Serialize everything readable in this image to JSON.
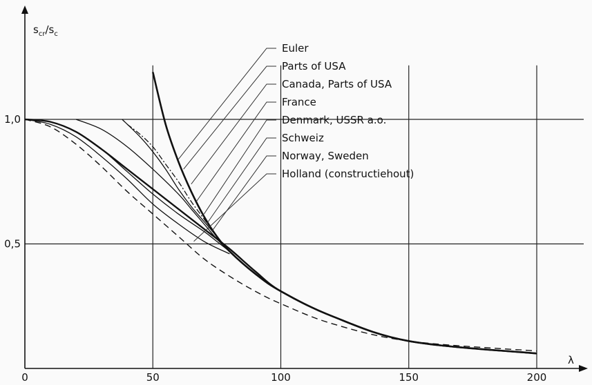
{
  "chart_data": {
    "type": "line",
    "xlabel": "λ",
    "ylabel": "s_cr/s_c",
    "ylabel_main": "s",
    "ylabel_sub1": "cr",
    "ylabel_sep": "/s",
    "ylabel_sub2": "c",
    "xlim": [
      0,
      205
    ],
    "ylim": [
      0,
      1.3
    ],
    "x_ticks": [
      {
        "value": 0,
        "label": "0"
      },
      {
        "value": 50,
        "label": "50"
      },
      {
        "value": 100,
        "label": "100"
      },
      {
        "value": 150,
        "label": "150"
      },
      {
        "value": 200,
        "label": "200"
      }
    ],
    "y_ticks": [
      {
        "value": 0.5,
        "label": "0,5"
      },
      {
        "value": 1.0,
        "label": "1,0"
      }
    ],
    "grid": true,
    "series": [
      {
        "name": "Euler",
        "style": "euler",
        "x": [
          50,
          55,
          60,
          65,
          70,
          75,
          80,
          90,
          100,
          120,
          150,
          200
        ],
        "y": [
          1.19,
          0.98,
          0.83,
          0.71,
          0.61,
          0.53,
          0.47,
          0.38,
          0.31,
          0.21,
          0.11,
          0.06
        ]
      },
      {
        "name": "Parts of USA",
        "style": "thin",
        "x": [
          20,
          30,
          40,
          50,
          60,
          65,
          70,
          75,
          80
        ],
        "y": [
          1.0,
          0.96,
          0.89,
          0.8,
          0.7,
          0.64,
          0.58,
          0.52,
          0.47
        ]
      },
      {
        "name": "Canada, Parts of USA",
        "style": "thin",
        "x": [
          38,
          45,
          50,
          55,
          60,
          65,
          70,
          75,
          80
        ],
        "y": [
          1.0,
          0.93,
          0.87,
          0.8,
          0.72,
          0.65,
          0.59,
          0.53,
          0.47
        ]
      },
      {
        "name": "France",
        "style": "dashdot",
        "x": [
          40,
          45,
          50,
          55,
          60,
          65,
          70,
          75,
          80,
          90,
          100
        ],
        "y": [
          0.98,
          0.94,
          0.89,
          0.82,
          0.75,
          0.67,
          0.6,
          0.53,
          0.47,
          0.38,
          0.31
        ]
      },
      {
        "name": "Denmark, USSR a.o.",
        "style": "thin",
        "x": [
          0,
          10,
          20,
          30,
          40,
          50,
          60,
          70,
          75,
          80
        ],
        "y": [
          1.0,
          0.99,
          0.95,
          0.88,
          0.79,
          0.7,
          0.62,
          0.55,
          0.51,
          0.47
        ]
      },
      {
        "name": "Schweiz",
        "style": "thick",
        "x": [
          0,
          10,
          20,
          30,
          40,
          50,
          60,
          70,
          80,
          90,
          100,
          120,
          150,
          200
        ],
        "y": [
          1.0,
          0.99,
          0.95,
          0.88,
          0.8,
          0.72,
          0.64,
          0.56,
          0.48,
          0.39,
          0.31,
          0.21,
          0.11,
          0.06
        ]
      },
      {
        "name": "Norway, Sweden",
        "style": "thin",
        "x": [
          0,
          10,
          20,
          30,
          40,
          50,
          60,
          70,
          80
        ],
        "y": [
          1.0,
          0.98,
          0.93,
          0.85,
          0.76,
          0.66,
          0.58,
          0.51,
          0.46
        ]
      },
      {
        "name": "Holland (constructiehout)",
        "style": "dashed",
        "x": [
          0,
          10,
          20,
          30,
          40,
          50,
          60,
          70,
          80,
          90,
          100,
          120,
          150,
          200
        ],
        "y": [
          1.0,
          0.97,
          0.9,
          0.81,
          0.71,
          0.62,
          0.53,
          0.44,
          0.37,
          0.31,
          0.26,
          0.18,
          0.11,
          0.07
        ]
      }
    ],
    "legend": {
      "placement": "top-center",
      "entries": [
        {
          "label": "Euler",
          "x": 60,
          "y": 0.84
        },
        {
          "label": "Parts of USA",
          "x": 62,
          "y": 0.8
        },
        {
          "label": "Canada, Parts of USA",
          "x": 65,
          "y": 0.74
        },
        {
          "label": "France",
          "x": 67,
          "y": 0.67
        },
        {
          "label": "Denmark, USSR a.o.",
          "x": 70,
          "y": 0.62
        },
        {
          "label": "Schweiz",
          "x": 71,
          "y": 0.58
        },
        {
          "label": "Norway, Sweden",
          "x": 73,
          "y": 0.55
        },
        {
          "label": "Holland (constructiehout)",
          "x": 66,
          "y": 0.51
        }
      ]
    }
  }
}
